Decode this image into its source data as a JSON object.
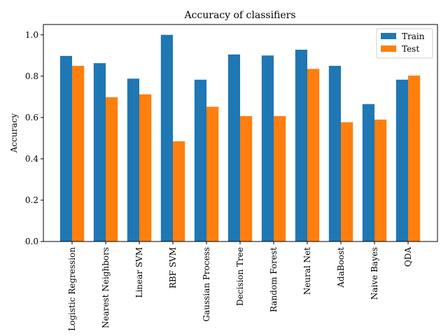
{
  "chart_data": {
    "type": "bar",
    "title": "Accuracy of classifiers",
    "xlabel": "",
    "ylabel": "Accuracy",
    "ylim": [
      0,
      1.05
    ],
    "yticks": [
      "0.0",
      "0.2",
      "0.4",
      "0.6",
      "0.8",
      "1.0"
    ],
    "ytick_values": [
      0,
      0.2,
      0.4,
      0.6,
      0.8,
      1.0
    ],
    "grid": false,
    "legend_position": "top-right",
    "categories": [
      "Logistic Regression",
      "Nearest Neighbors",
      "Linear SVM",
      "RBF SVM",
      "Gaussian Process",
      "Decision Tree",
      "Random Forest",
      "Neural Net",
      "AdaBoost",
      "Naive Bayes",
      "QDA"
    ],
    "series": [
      {
        "name": "Train",
        "color": "#1f77b4",
        "values": [
          0.898,
          0.863,
          0.788,
          1.0,
          0.783,
          0.905,
          0.9,
          0.928,
          0.85,
          0.665,
          0.783
        ]
      },
      {
        "name": "Test",
        "color": "#ff7f0e",
        "values": [
          0.85,
          0.698,
          0.712,
          0.485,
          0.652,
          0.607,
          0.607,
          0.835,
          0.577,
          0.59,
          0.803
        ]
      }
    ]
  }
}
